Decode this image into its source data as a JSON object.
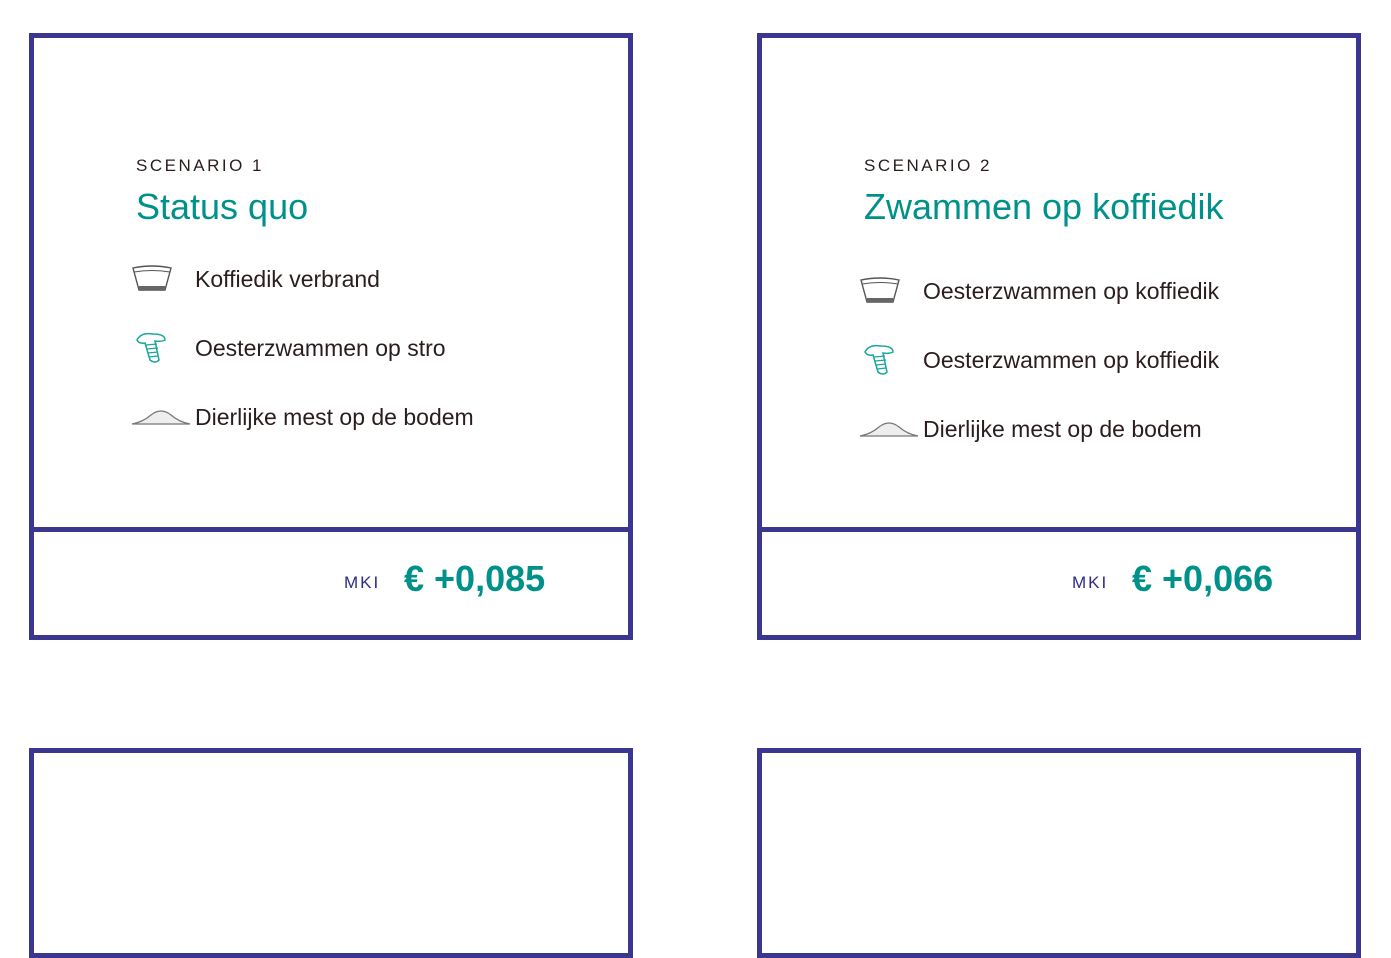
{
  "colors": {
    "border": "#3b3791",
    "accent": "#00928a",
    "mki": "#2d2a86"
  },
  "cards": [
    {
      "label": "SCENARIO 1",
      "title": "Status quo",
      "items": [
        {
          "icon": "coffee-filter-icon",
          "text": "Koffiedik verbrand"
        },
        {
          "icon": "mushroom-icon",
          "text": "Oesterzwammen op stro"
        },
        {
          "icon": "manure-pile-icon",
          "text": "Dierlijke mest op de bodem"
        }
      ],
      "mki_label": "MKI",
      "value": "€ +0,085"
    },
    {
      "label": "SCENARIO 2",
      "title": "Zwammen op koffiedik",
      "items": [
        {
          "icon": "coffee-filter-icon",
          "text": "Oesterzwammen op koffiedik"
        },
        {
          "icon": "mushroom-icon",
          "text": "Oesterzwammen op koffiedik"
        },
        {
          "icon": "manure-pile-icon",
          "text": "Dierlijke mest op de bodem"
        }
      ],
      "mki_label": "MKI",
      "value": "€ +0,066"
    }
  ]
}
